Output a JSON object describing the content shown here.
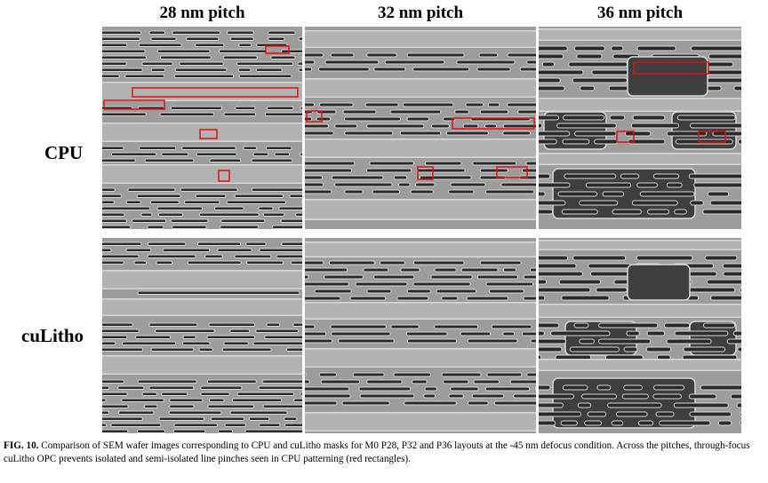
{
  "columns": [
    {
      "id": "p28",
      "title": "28 nm pitch"
    },
    {
      "id": "p32",
      "title": "32 nm pitch"
    },
    {
      "id": "p36",
      "title": "36 nm pitch"
    }
  ],
  "rows": [
    {
      "id": "cpu",
      "label": "CPU"
    },
    {
      "id": "culitho",
      "label": "cuLitho"
    }
  ],
  "caption": {
    "figure_label": "FIG.  10.",
    "text": " Comparison of SEM wafer images corresponding to CPU and cuLitho masks for M0 P28, P32 and P36 layouts at the -45 nm defocus condition. Across the pitches, through-focus cuLitho OPC prevents isolated and semi-isolated line pinches seen in CPU patterning (red rectangles)."
  },
  "colors": {
    "sem_background": "#9c9c9c",
    "sem_dark_region": "#3f3f3f",
    "sem_line": "#2a2a2a",
    "sem_edge": "#d8d8d8",
    "defect_box": "#e01010"
  }
}
